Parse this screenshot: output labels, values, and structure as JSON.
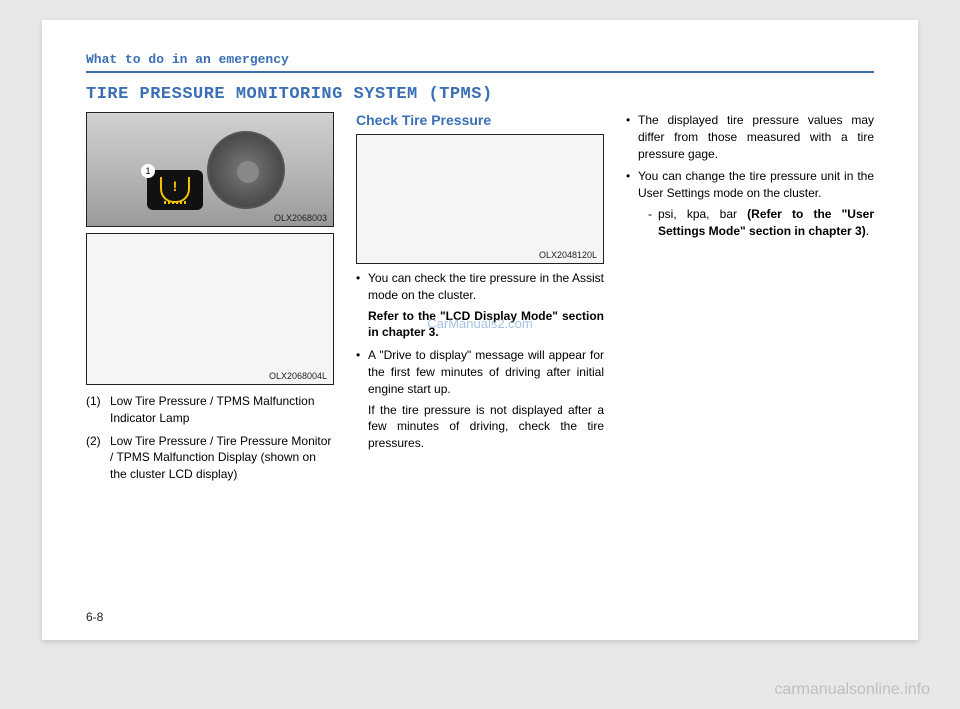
{
  "header": "What to do in an emergency",
  "title": "TIRE PRESSURE MONITORING SYSTEM (TPMS)",
  "pageNumber": "6-8",
  "watermarkCenter": "CarManuals2.com",
  "watermarkBottom": "carmanualsonline.info",
  "col1": {
    "fig1": {
      "label": "OLX2068003",
      "badgeNum": "1"
    },
    "fig2": {
      "label": "OLX2068004L"
    },
    "items": [
      {
        "n": "(1)",
        "text": "Low Tire Pressure / TPMS Malfunction Indicator Lamp"
      },
      {
        "n": "(2)",
        "text": "Low Tire Pressure / Tire Pressure Monitor / TPMS Malfunction Display (shown on the cluster LCD display)"
      }
    ]
  },
  "col2": {
    "subtitle": "Check Tire Pressure",
    "figLabel": "OLX2048120L",
    "bullets": [
      {
        "text": "You can check the tire pressure in the Assist mode on the cluster.",
        "boldFollow": "Refer to the \"LCD Display Mode\" section in chapter 3."
      },
      {
        "text": "A \"Drive to display\" message will appear for the first few minutes of driving after initial engine start up.",
        "plainFollow": "If the tire pressure is not displayed after a few minutes of driving, check the tire pressures."
      }
    ]
  },
  "col3": {
    "bullets": [
      {
        "text": "The displayed tire pressure values may differ from those measured with a tire pressure gage."
      },
      {
        "text": "You can change the tire pressure unit in the User Settings mode on the cluster.",
        "sub": {
          "lead": "psi, kpa, bar ",
          "bold": "(Refer to the \"User Settings Mode\" section in chapter 3)",
          "tail": "."
        }
      }
    ]
  }
}
